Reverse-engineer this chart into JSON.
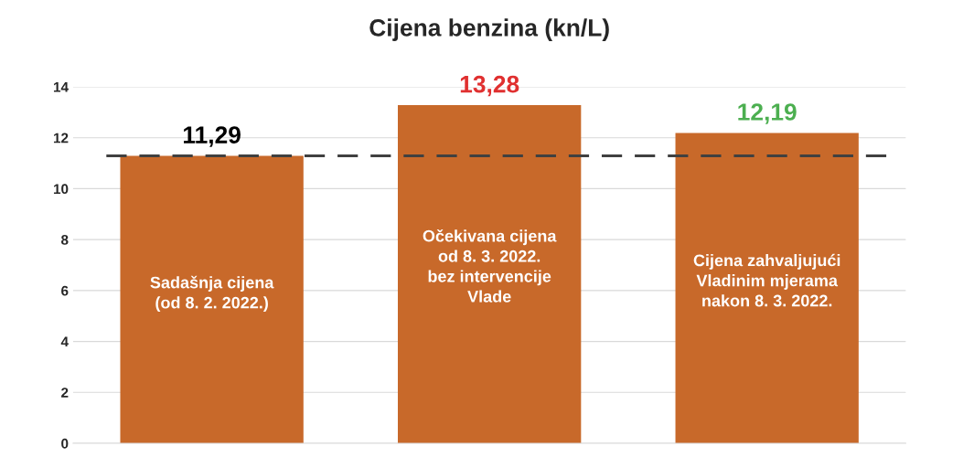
{
  "chart_data": {
    "type": "bar",
    "title": "Cijena benzina (kn/L)",
    "categories": [
      "Sadašnja cijena\n(od 8. 2. 2022.)",
      "Očekivana cijena\nod 8. 3. 2022.\nbez intervencije\nVlade",
      "Cijena zahvaljujući\nVladinim mjerama\nnakon 8. 3. 2022."
    ],
    "values": [
      11.29,
      13.28,
      12.19
    ],
    "value_labels": [
      "11,29",
      "13,28",
      "12,19"
    ],
    "color": "#c8692a",
    "ylim": [
      0,
      14
    ],
    "yticks": [
      0,
      2,
      4,
      6,
      8,
      10,
      12,
      14
    ],
    "grid": "y",
    "ref_lines": [
      {
        "axis": "y",
        "value": 11.29,
        "color": "#404040",
        "line_style": "dashed"
      }
    ]
  }
}
